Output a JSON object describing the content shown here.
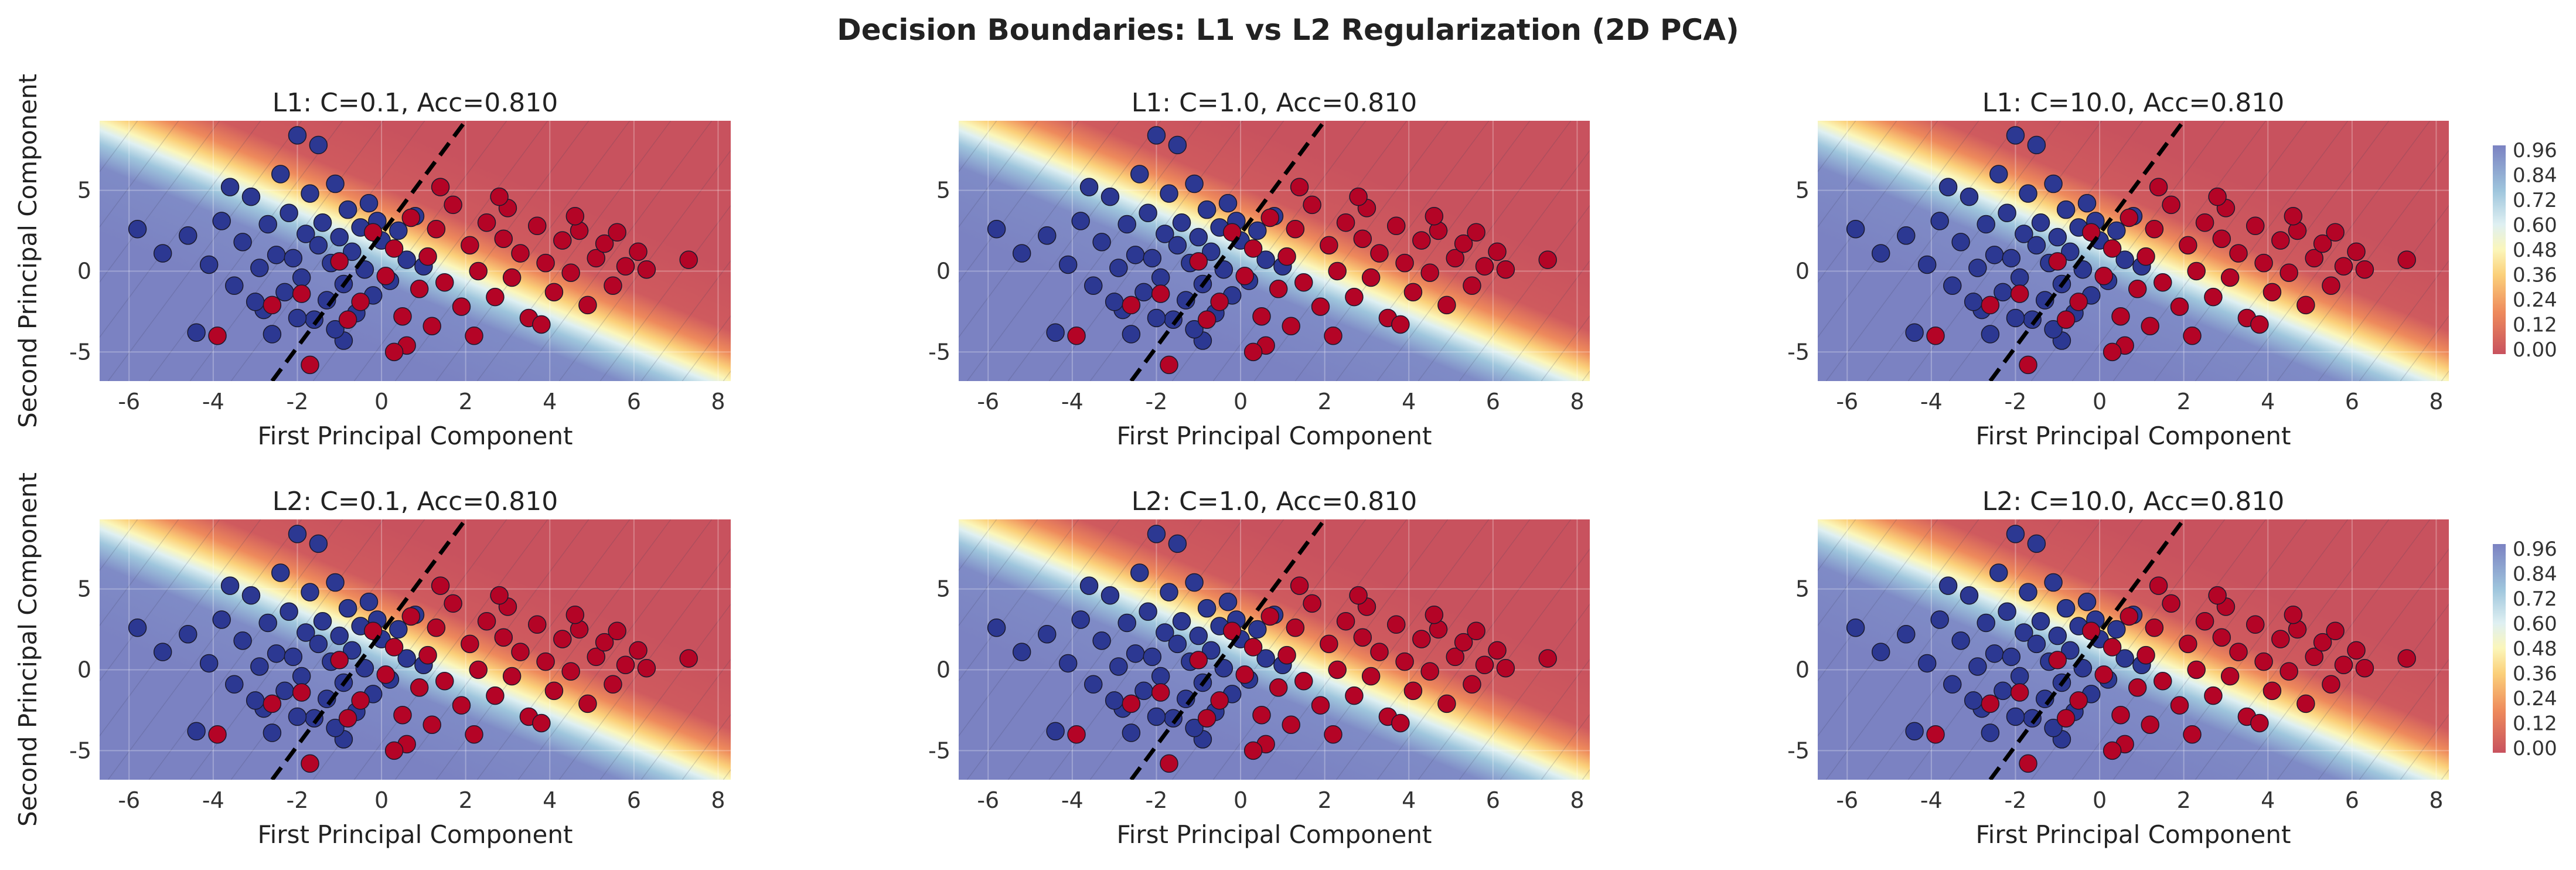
{
  "figure": {
    "title": "Decision Boundaries: L1 vs L2 Regularization (2D PCA)"
  },
  "colorbar": {
    "ticks": [
      "0.96",
      "0.84",
      "0.72",
      "0.60",
      "0.48",
      "0.36",
      "0.24",
      "0.12",
      "0.00"
    ],
    "low_color": "#c8525e",
    "mid_color": "#fbf6ba",
    "high_color": "#7b82c2"
  },
  "chart_data": [
    {
      "type": "scatter",
      "title": "L1: C=0.1, Acc=0.810",
      "xlabel": "First Principal Component",
      "ylabel": "Second Principal Component",
      "xlim": [
        -6.7,
        8.3
      ],
      "ylim": [
        -6.8,
        9.3
      ],
      "xticks": [
        "-6",
        "-4",
        "-2",
        "0",
        "2",
        "4",
        "6",
        "8"
      ],
      "yticks": [
        "-5",
        "0",
        "5"
      ],
      "boundary": {
        "x1": -2.6,
        "y1": -6.8,
        "x2": 2.0,
        "y2": 9.3
      },
      "series": [
        {
          "color": "#2c3892"
        },
        {
          "color": "#b40426"
        }
      ]
    },
    {
      "type": "scatter",
      "title": "L1: C=1.0, Acc=0.810",
      "xlabel": "First Principal Component",
      "ylabel": "",
      "xlim": [
        -6.7,
        8.3
      ],
      "ylim": [
        -6.8,
        9.3
      ],
      "xticks": [
        "-6",
        "-4",
        "-2",
        "0",
        "2",
        "4",
        "6",
        "8"
      ],
      "yticks": [
        "-5",
        "0",
        "5"
      ],
      "boundary": {
        "x1": -2.6,
        "y1": -6.8,
        "x2": 2.0,
        "y2": 9.3
      },
      "series": [
        {
          "color": "#2c3892"
        },
        {
          "color": "#b40426"
        }
      ]
    },
    {
      "type": "scatter",
      "title": "L1: C=10.0, Acc=0.810",
      "xlabel": "First Principal Component",
      "ylabel": "",
      "xlim": [
        -6.7,
        8.3
      ],
      "ylim": [
        -6.8,
        9.3
      ],
      "xticks": [
        "-6",
        "-4",
        "-2",
        "0",
        "2",
        "4",
        "6",
        "8"
      ],
      "yticks": [
        "-5",
        "0",
        "5"
      ],
      "boundary": {
        "x1": -2.6,
        "y1": -6.8,
        "x2": 2.0,
        "y2": 9.3
      },
      "series": [
        {
          "color": "#2c3892"
        },
        {
          "color": "#b40426"
        }
      ]
    },
    {
      "type": "scatter",
      "title": "L2: C=0.1, Acc=0.810",
      "xlabel": "First Principal Component",
      "ylabel": "Second Principal Component",
      "xlim": [
        -6.7,
        8.3
      ],
      "ylim": [
        -6.8,
        9.3
      ],
      "xticks": [
        "-6",
        "-4",
        "-2",
        "0",
        "2",
        "4",
        "6",
        "8"
      ],
      "yticks": [
        "-5",
        "0",
        "5"
      ],
      "boundary": {
        "x1": -2.6,
        "y1": -6.8,
        "x2": 2.0,
        "y2": 9.3
      },
      "series": [
        {
          "color": "#2c3892"
        },
        {
          "color": "#b40426"
        }
      ]
    },
    {
      "type": "scatter",
      "title": "L2: C=1.0, Acc=0.810",
      "xlabel": "First Principal Component",
      "ylabel": "",
      "xlim": [
        -6.7,
        8.3
      ],
      "ylim": [
        -6.8,
        9.3
      ],
      "xticks": [
        "-6",
        "-4",
        "-2",
        "0",
        "2",
        "4",
        "6",
        "8"
      ],
      "yticks": [
        "-5",
        "0",
        "5"
      ],
      "boundary": {
        "x1": -2.6,
        "y1": -6.8,
        "x2": 2.0,
        "y2": 9.3
      },
      "series": [
        {
          "color": "#2c3892"
        },
        {
          "color": "#b40426"
        }
      ]
    },
    {
      "type": "scatter",
      "title": "L2: C=10.0, Acc=0.810",
      "xlabel": "First Principal Component",
      "ylabel": "",
      "xlim": [
        -6.7,
        8.3
      ],
      "ylim": [
        -6.8,
        9.3
      ],
      "xticks": [
        "-6",
        "-4",
        "-2",
        "0",
        "2",
        "4",
        "6",
        "8"
      ],
      "yticks": [
        "-5",
        "0",
        "5"
      ],
      "boundary": {
        "x1": -2.6,
        "y1": -6.8,
        "x2": 2.0,
        "y2": 9.3
      },
      "series": [
        {
          "color": "#2c3892"
        },
        {
          "color": "#b40426"
        }
      ]
    }
  ],
  "points": [
    [
      -5.2,
      1.1,
      0
    ],
    [
      -4.6,
      2.2,
      0
    ],
    [
      -4.1,
      0.4,
      0
    ],
    [
      -3.8,
      3.1,
      0
    ],
    [
      -3.5,
      -0.9,
      0
    ],
    [
      -3.3,
      1.8,
      0
    ],
    [
      -3.1,
      4.6,
      0
    ],
    [
      -2.9,
      0.2,
      0
    ],
    [
      -2.8,
      -2.4,
      0
    ],
    [
      -2.7,
      2.9,
      0
    ],
    [
      -2.5,
      1.0,
      0
    ],
    [
      -2.4,
      6.0,
      0
    ],
    [
      -2.3,
      -1.3,
      0
    ],
    [
      -2.2,
      3.6,
      0
    ],
    [
      -2.1,
      0.8,
      0
    ],
    [
      -2.0,
      8.4,
      0
    ],
    [
      -1.9,
      -0.4,
      0
    ],
    [
      -1.8,
      2.3,
      0
    ],
    [
      -1.7,
      4.8,
      0
    ],
    [
      -1.6,
      -3.0,
      0
    ],
    [
      -1.5,
      1.6,
      0
    ],
    [
      -1.4,
      3.0,
      0
    ],
    [
      -1.3,
      -1.8,
      0
    ],
    [
      -1.2,
      0.5,
      0
    ],
    [
      -1.1,
      5.4,
      0
    ],
    [
      -1.0,
      2.1,
      0
    ],
    [
      -0.9,
      -0.8,
      0
    ],
    [
      -0.8,
      3.8,
      0
    ],
    [
      -0.7,
      1.2,
      0
    ],
    [
      -0.6,
      -2.6,
      0
    ],
    [
      -0.5,
      2.7,
      0
    ],
    [
      -0.4,
      0.1,
      0
    ],
    [
      -0.3,
      4.2,
      0
    ],
    [
      -0.2,
      -1.5,
      0
    ],
    [
      0.0,
      1.9,
      0
    ],
    [
      0.2,
      -0.6,
      0
    ],
    [
      0.4,
      2.5,
      0
    ],
    [
      0.6,
      0.7,
      0
    ],
    [
      -4.4,
      -3.8,
      0
    ],
    [
      -5.8,
      2.6,
      0
    ],
    [
      -3.6,
      5.2,
      0
    ],
    [
      -2.6,
      -3.9,
      0
    ],
    [
      -1.5,
      7.8,
      0
    ],
    [
      -0.9,
      -4.3,
      0
    ],
    [
      0.8,
      3.4,
      0
    ],
    [
      1.0,
      0.3,
      0
    ],
    [
      -3.0,
      -1.9,
      0
    ],
    [
      -2.0,
      -2.9,
      0
    ],
    [
      -1.1,
      -3.6,
      0
    ],
    [
      -0.1,
      3.1,
      0
    ],
    [
      -1.0,
      0.6,
      1
    ],
    [
      -0.5,
      -1.9,
      1
    ],
    [
      -0.2,
      2.4,
      1
    ],
    [
      0.1,
      -0.3,
      1
    ],
    [
      0.3,
      1.4,
      1
    ],
    [
      0.5,
      -2.8,
      1
    ],
    [
      0.7,
      3.3,
      1
    ],
    [
      0.9,
      -1.1,
      1
    ],
    [
      1.1,
      0.9,
      1
    ],
    [
      1.3,
      2.6,
      1
    ],
    [
      1.5,
      -0.7,
      1
    ],
    [
      1.7,
      4.1,
      1
    ],
    [
      1.9,
      -2.2,
      1
    ],
    [
      2.1,
      1.6,
      1
    ],
    [
      2.3,
      0.0,
      1
    ],
    [
      2.5,
      3.0,
      1
    ],
    [
      2.7,
      -1.6,
      1
    ],
    [
      2.9,
      2.0,
      1
    ],
    [
      3.1,
      -0.4,
      1
    ],
    [
      3.3,
      1.1,
      1
    ],
    [
      3.5,
      -2.9,
      1
    ],
    [
      3.7,
      2.8,
      1
    ],
    [
      3.9,
      0.5,
      1
    ],
    [
      4.1,
      -1.3,
      1
    ],
    [
      4.3,
      1.9,
      1
    ],
    [
      4.5,
      -0.1,
      1
    ],
    [
      4.7,
      2.5,
      1
    ],
    [
      4.9,
      -2.1,
      1
    ],
    [
      5.1,
      0.8,
      1
    ],
    [
      5.3,
      1.7,
      1
    ],
    [
      5.5,
      -0.9,
      1
    ],
    [
      5.8,
      0.3,
      1
    ],
    [
      6.1,
      1.2,
      1
    ],
    [
      6.3,
      0.1,
      1
    ],
    [
      7.3,
      0.7,
      1
    ],
    [
      1.4,
      5.2,
      1
    ],
    [
      2.2,
      -4.0,
      1
    ],
    [
      3.0,
      3.9,
      1
    ],
    [
      3.8,
      -3.3,
      1
    ],
    [
      0.6,
      -4.6,
      1
    ],
    [
      -1.9,
      -1.4,
      1
    ],
    [
      -2.6,
      -2.1,
      1
    ],
    [
      -0.8,
      -3.0,
      1
    ],
    [
      2.8,
      4.6,
      1
    ],
    [
      4.6,
      3.4,
      1
    ],
    [
      5.6,
      2.4,
      1
    ],
    [
      1.2,
      -3.4,
      1
    ],
    [
      -1.7,
      -5.8,
      1
    ],
    [
      -3.9,
      -4.0,
      1
    ],
    [
      0.3,
      -5.0,
      1
    ]
  ]
}
